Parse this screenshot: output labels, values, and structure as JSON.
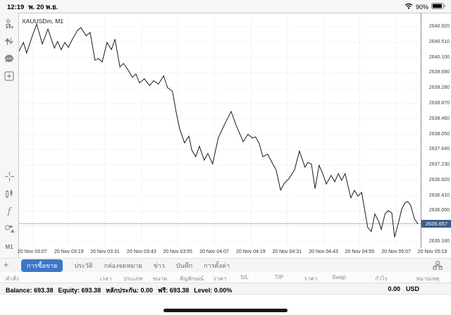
{
  "status_bar": {
    "time": "12:19",
    "date": "พ. 20 พ.ย.",
    "battery_percent": "90%"
  },
  "sidebar": {
    "top_icons": [
      "accounts-icon",
      "trade-arrows-icon",
      "chat-icon",
      "new-chart-icon"
    ],
    "tool_icons": [
      "crosshair-icon",
      "candles-icon",
      "indicators-icon",
      "objects-icon"
    ],
    "timeframe_label": "M1",
    "add_label": "+"
  },
  "chart": {
    "symbol_label": "XAUUSDm, M1"
  },
  "chart_data": {
    "type": "line",
    "title": "XAUUSDm, M1",
    "symbol": "XAUUSDm",
    "timeframe": "M1",
    "legend": "none",
    "grid": "dotted",
    "current_price": 2635.657,
    "y_ticks": [
      2640.92,
      2640.51,
      2640.1,
      2639.69,
      2639.28,
      2638.87,
      2638.46,
      2638.05,
      2637.64,
      2637.23,
      2636.82,
      2636.41,
      2636.0,
      2635.59,
      2635.18
    ],
    "x_ticks": [
      "20 Nov 03:07",
      "20 Nov 03:19",
      "20 Nov 03:31",
      "20 Nov 03:43",
      "20 Nov 03:55",
      "20 Nov 04:07",
      "20 Nov 04:19",
      "20 Nov 04:31",
      "20 Nov 04:43",
      "20 Nov 04:55",
      "20 Nov 05:07",
      "20 Nov 05:19"
    ],
    "x_tick_fracs": [
      0.033,
      0.124,
      0.214,
      0.305,
      0.395,
      0.486,
      0.577,
      0.667,
      0.758,
      0.848,
      0.939,
      1.029
    ],
    "series": [
      {
        "name": "XAUUSDm",
        "points": [
          [
            0.0,
            2640.27
          ],
          [
            0.011,
            2640.5
          ],
          [
            0.019,
            2640.22
          ],
          [
            0.032,
            2640.64
          ],
          [
            0.044,
            2640.99
          ],
          [
            0.058,
            2640.46
          ],
          [
            0.072,
            2640.86
          ],
          [
            0.088,
            2640.35
          ],
          [
            0.096,
            2640.53
          ],
          [
            0.105,
            2640.31
          ],
          [
            0.114,
            2640.5
          ],
          [
            0.123,
            2640.37
          ],
          [
            0.133,
            2640.59
          ],
          [
            0.146,
            2640.83
          ],
          [
            0.154,
            2640.9
          ],
          [
            0.167,
            2640.68
          ],
          [
            0.177,
            2640.77
          ],
          [
            0.189,
            2640.03
          ],
          [
            0.198,
            2640.07
          ],
          [
            0.207,
            2639.98
          ],
          [
            0.219,
            2640.5
          ],
          [
            0.23,
            2640.31
          ],
          [
            0.239,
            2640.59
          ],
          [
            0.251,
            2639.85
          ],
          [
            0.26,
            2639.94
          ],
          [
            0.272,
            2639.76
          ],
          [
            0.282,
            2639.57
          ],
          [
            0.291,
            2639.66
          ],
          [
            0.3,
            2639.42
          ],
          [
            0.312,
            2639.53
          ],
          [
            0.325,
            2639.35
          ],
          [
            0.335,
            2639.48
          ],
          [
            0.347,
            2639.39
          ],
          [
            0.36,
            2639.61
          ],
          [
            0.37,
            2639.29
          ],
          [
            0.382,
            2639.2
          ],
          [
            0.391,
            2638.65
          ],
          [
            0.4,
            2638.19
          ],
          [
            0.412,
            2637.82
          ],
          [
            0.423,
            2638.0
          ],
          [
            0.43,
            2637.63
          ],
          [
            0.44,
            2637.45
          ],
          [
            0.449,
            2637.73
          ],
          [
            0.461,
            2637.36
          ],
          [
            0.47,
            2637.54
          ],
          [
            0.482,
            2637.26
          ],
          [
            0.496,
            2637.95
          ],
          [
            0.511,
            2638.3
          ],
          [
            0.528,
            2638.66
          ],
          [
            0.54,
            2638.3
          ],
          [
            0.558,
            2637.85
          ],
          [
            0.57,
            2638.05
          ],
          [
            0.581,
            2637.95
          ],
          [
            0.589,
            2637.98
          ],
          [
            0.598,
            2637.8
          ],
          [
            0.607,
            2637.45
          ],
          [
            0.619,
            2637.52
          ],
          [
            0.632,
            2637.25
          ],
          [
            0.64,
            2637.1
          ],
          [
            0.651,
            2636.56
          ],
          [
            0.661,
            2636.75
          ],
          [
            0.672,
            2636.86
          ],
          [
            0.686,
            2637.1
          ],
          [
            0.698,
            2637.6
          ],
          [
            0.712,
            2637.17
          ],
          [
            0.719,
            2637.3
          ],
          [
            0.728,
            2637.25
          ],
          [
            0.737,
            2636.6
          ],
          [
            0.747,
            2637.22
          ],
          [
            0.756,
            2637.0
          ],
          [
            0.765,
            2636.72
          ],
          [
            0.777,
            2636.95
          ],
          [
            0.786,
            2636.78
          ],
          [
            0.795,
            2637.0
          ],
          [
            0.803,
            2636.82
          ],
          [
            0.812,
            2637.0
          ],
          [
            0.826,
            2636.35
          ],
          [
            0.835,
            2636.55
          ],
          [
            0.844,
            2636.4
          ],
          [
            0.853,
            2636.5
          ],
          [
            0.861,
            2636.0
          ],
          [
            0.868,
            2635.56
          ],
          [
            0.877,
            2635.45
          ],
          [
            0.886,
            2635.92
          ],
          [
            0.895,
            2635.73
          ],
          [
            0.902,
            2635.51
          ],
          [
            0.911,
            2635.92
          ],
          [
            0.919,
            2636.01
          ],
          [
            0.928,
            2635.95
          ],
          [
            0.935,
            2635.3
          ],
          [
            0.944,
            2635.66
          ],
          [
            0.953,
            2636.06
          ],
          [
            0.961,
            2636.22
          ],
          [
            0.968,
            2636.25
          ],
          [
            0.975,
            2636.15
          ],
          [
            0.984,
            2635.8
          ],
          [
            0.993,
            2635.657
          ]
        ]
      }
    ],
    "colors": {
      "line": "#1a1a1a",
      "grid": "#d8d8d8",
      "current_price_badge": "#3b5e86",
      "selected_tab": "#3c78c8"
    }
  },
  "tabs": {
    "selected_index": 0,
    "items": [
      "การซื้อขาย",
      "ประวัติ",
      "กล่องจดหมาย",
      "ข่าว",
      "บันทึก",
      "การตั้งค่า"
    ]
  },
  "table": {
    "headers": [
      "คำสั่ง",
      "เวลา",
      "ประเภท",
      "ขนาด",
      "สัญลักษณ์",
      "ราคา",
      "S/L",
      "T/P",
      "ราคา",
      "Swap",
      "กำไร",
      "หมายเหตุ"
    ]
  },
  "account": {
    "fields": [
      {
        "label": "Balance:",
        "value": "693.38"
      },
      {
        "label": "Equity:",
        "value": "693.38"
      },
      {
        "label": "หลักประกัน:",
        "value": "0.00"
      },
      {
        "label": "ฟรี:",
        "value": "693.38"
      },
      {
        "label": "Level:",
        "value": "0.00%"
      }
    ],
    "profit": "0.00",
    "currency": "USD"
  }
}
